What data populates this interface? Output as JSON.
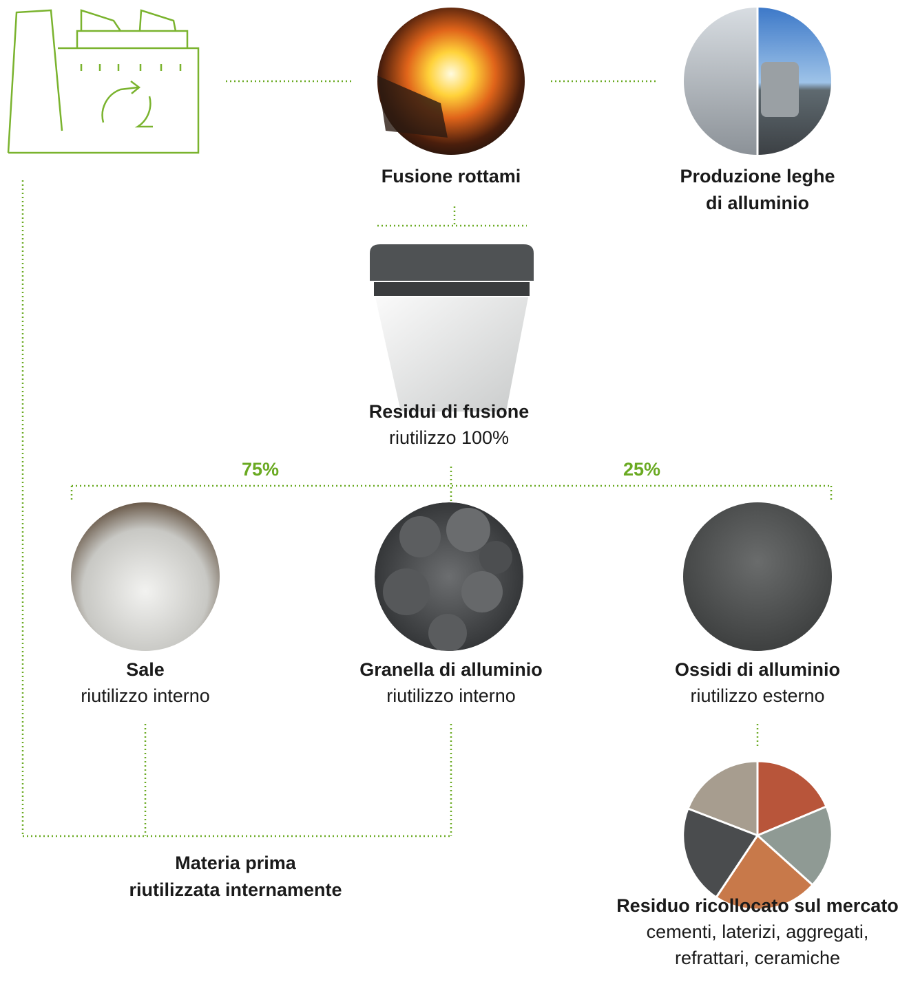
{
  "nodes": [
    {
      "title": [
        "Fusione rottami"
      ],
      "subtitle": []
    },
    {
      "title": [
        "Produzione leghe",
        "di alluminio"
      ],
      "subtitle": []
    },
    {
      "title": [
        "Residui di fusione"
      ],
      "subtitle": [
        "riutilizzo 100%"
      ]
    },
    {
      "title": [
        "Sale"
      ],
      "subtitle": [
        "riutilizzo interno"
      ]
    },
    {
      "title": [
        "Granella di alluminio"
      ],
      "subtitle": [
        "riutilizzo interno"
      ]
    },
    {
      "title": [
        "Ossidi di alluminio"
      ],
      "subtitle": [
        "riutilizzo esterno"
      ]
    },
    {
      "title": [
        "Residuo ricollocato sul mercato"
      ],
      "subtitle": [
        "cementi, laterizi, aggregati,",
        "refrattari, ceramiche"
      ]
    },
    {
      "title": [
        "Materia prima",
        "riutilizzata internamente"
      ],
      "subtitle": []
    }
  ],
  "split": {
    "left": "75%",
    "right": "25%"
  }
}
